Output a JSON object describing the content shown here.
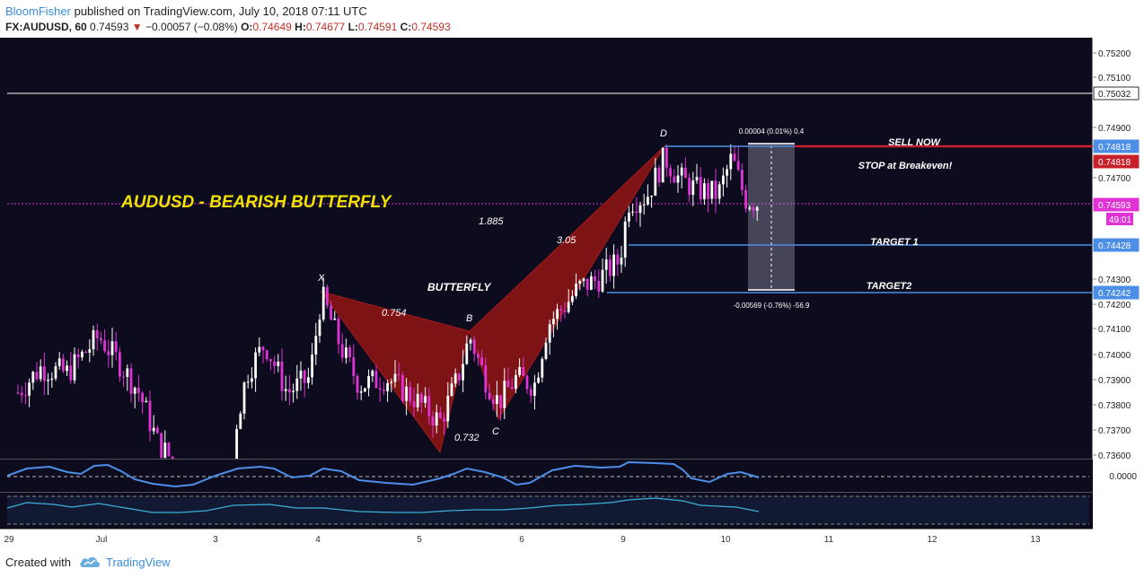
{
  "header": {
    "author": "BloomFisher",
    "published": "published on TradingView.com, July 10, 2018 07:11 UTC",
    "symbol": "FX:AUDUSD, 60",
    "last": "0.74593",
    "change": "−0.00057 (−0.08%)",
    "open_label": "O:",
    "open": "0.74649",
    "high_label": "H:",
    "high": "0.74677",
    "low_label": "L:",
    "low": "0.74591",
    "close_label": "C:",
    "close": "0.74593"
  },
  "footer": {
    "created_with": "Created with",
    "brand": "TradingView"
  },
  "colors": {
    "background": "#0d0b1e",
    "up": "#ffffff",
    "down": "#e033d6",
    "pattern": "#8b1414",
    "accent_blue": "#4d8fe6",
    "sell_red": "#c8212b",
    "header_accent": "#3a8dde",
    "title_yellow": "#f2e200"
  },
  "chart_data": {
    "type": "candlestick",
    "symbol": "FX:AUDUSD",
    "interval": "60",
    "ylim": [
      0.7355,
      0.7527
    ],
    "y_ticks": [
      "0.75200",
      "0.75100",
      "0.75032",
      "0.74900",
      "0.74818",
      "0.74818",
      "0.74700",
      "0.74593",
      "0.74428",
      "0.74300",
      "0.74242",
      "0.74200",
      "0.74100",
      "0.74000",
      "0.73900",
      "0.73800",
      "0.73700",
      "0.73600"
    ],
    "x_ticks": [
      "29",
      "Jul",
      "3",
      "4",
      "5",
      "6",
      "9",
      "10",
      "11",
      "12",
      "13"
    ],
    "countdown": "49:01",
    "title_annotation": "AUDUSD - BEARISH BUTTERFLY",
    "pattern_label": "BUTTERFLY",
    "pattern": [
      {
        "label": "X",
        "date": "Jul 4",
        "price": 0.7425
      },
      {
        "label": "B",
        "date": "Jul 5",
        "price": 0.7409
      },
      {
        "label": "C",
        "date": "Jul 5",
        "price": 0.7375
      },
      {
        "label": "D",
        "date": "Jul 9",
        "price": 0.7482
      }
    ],
    "ratios": [
      "0.754",
      "0.732",
      "1.885",
      "3.05"
    ],
    "levels": [
      {
        "name": "SELL NOW",
        "price": 0.74818
      },
      {
        "name": "TARGET 1",
        "price": 0.74428
      },
      {
        "name": "TARGET2",
        "price": 0.74242
      },
      {
        "name": "",
        "price": 0.75032
      }
    ],
    "stop_note": "STOP at Breakeven!",
    "measure_top": "0.00004 (0.01%) 0.4",
    "measure_bottom": "-0.00569 (-0.76%) -56.9",
    "last_price": 0.74593,
    "indicator_value": "0.0000"
  }
}
